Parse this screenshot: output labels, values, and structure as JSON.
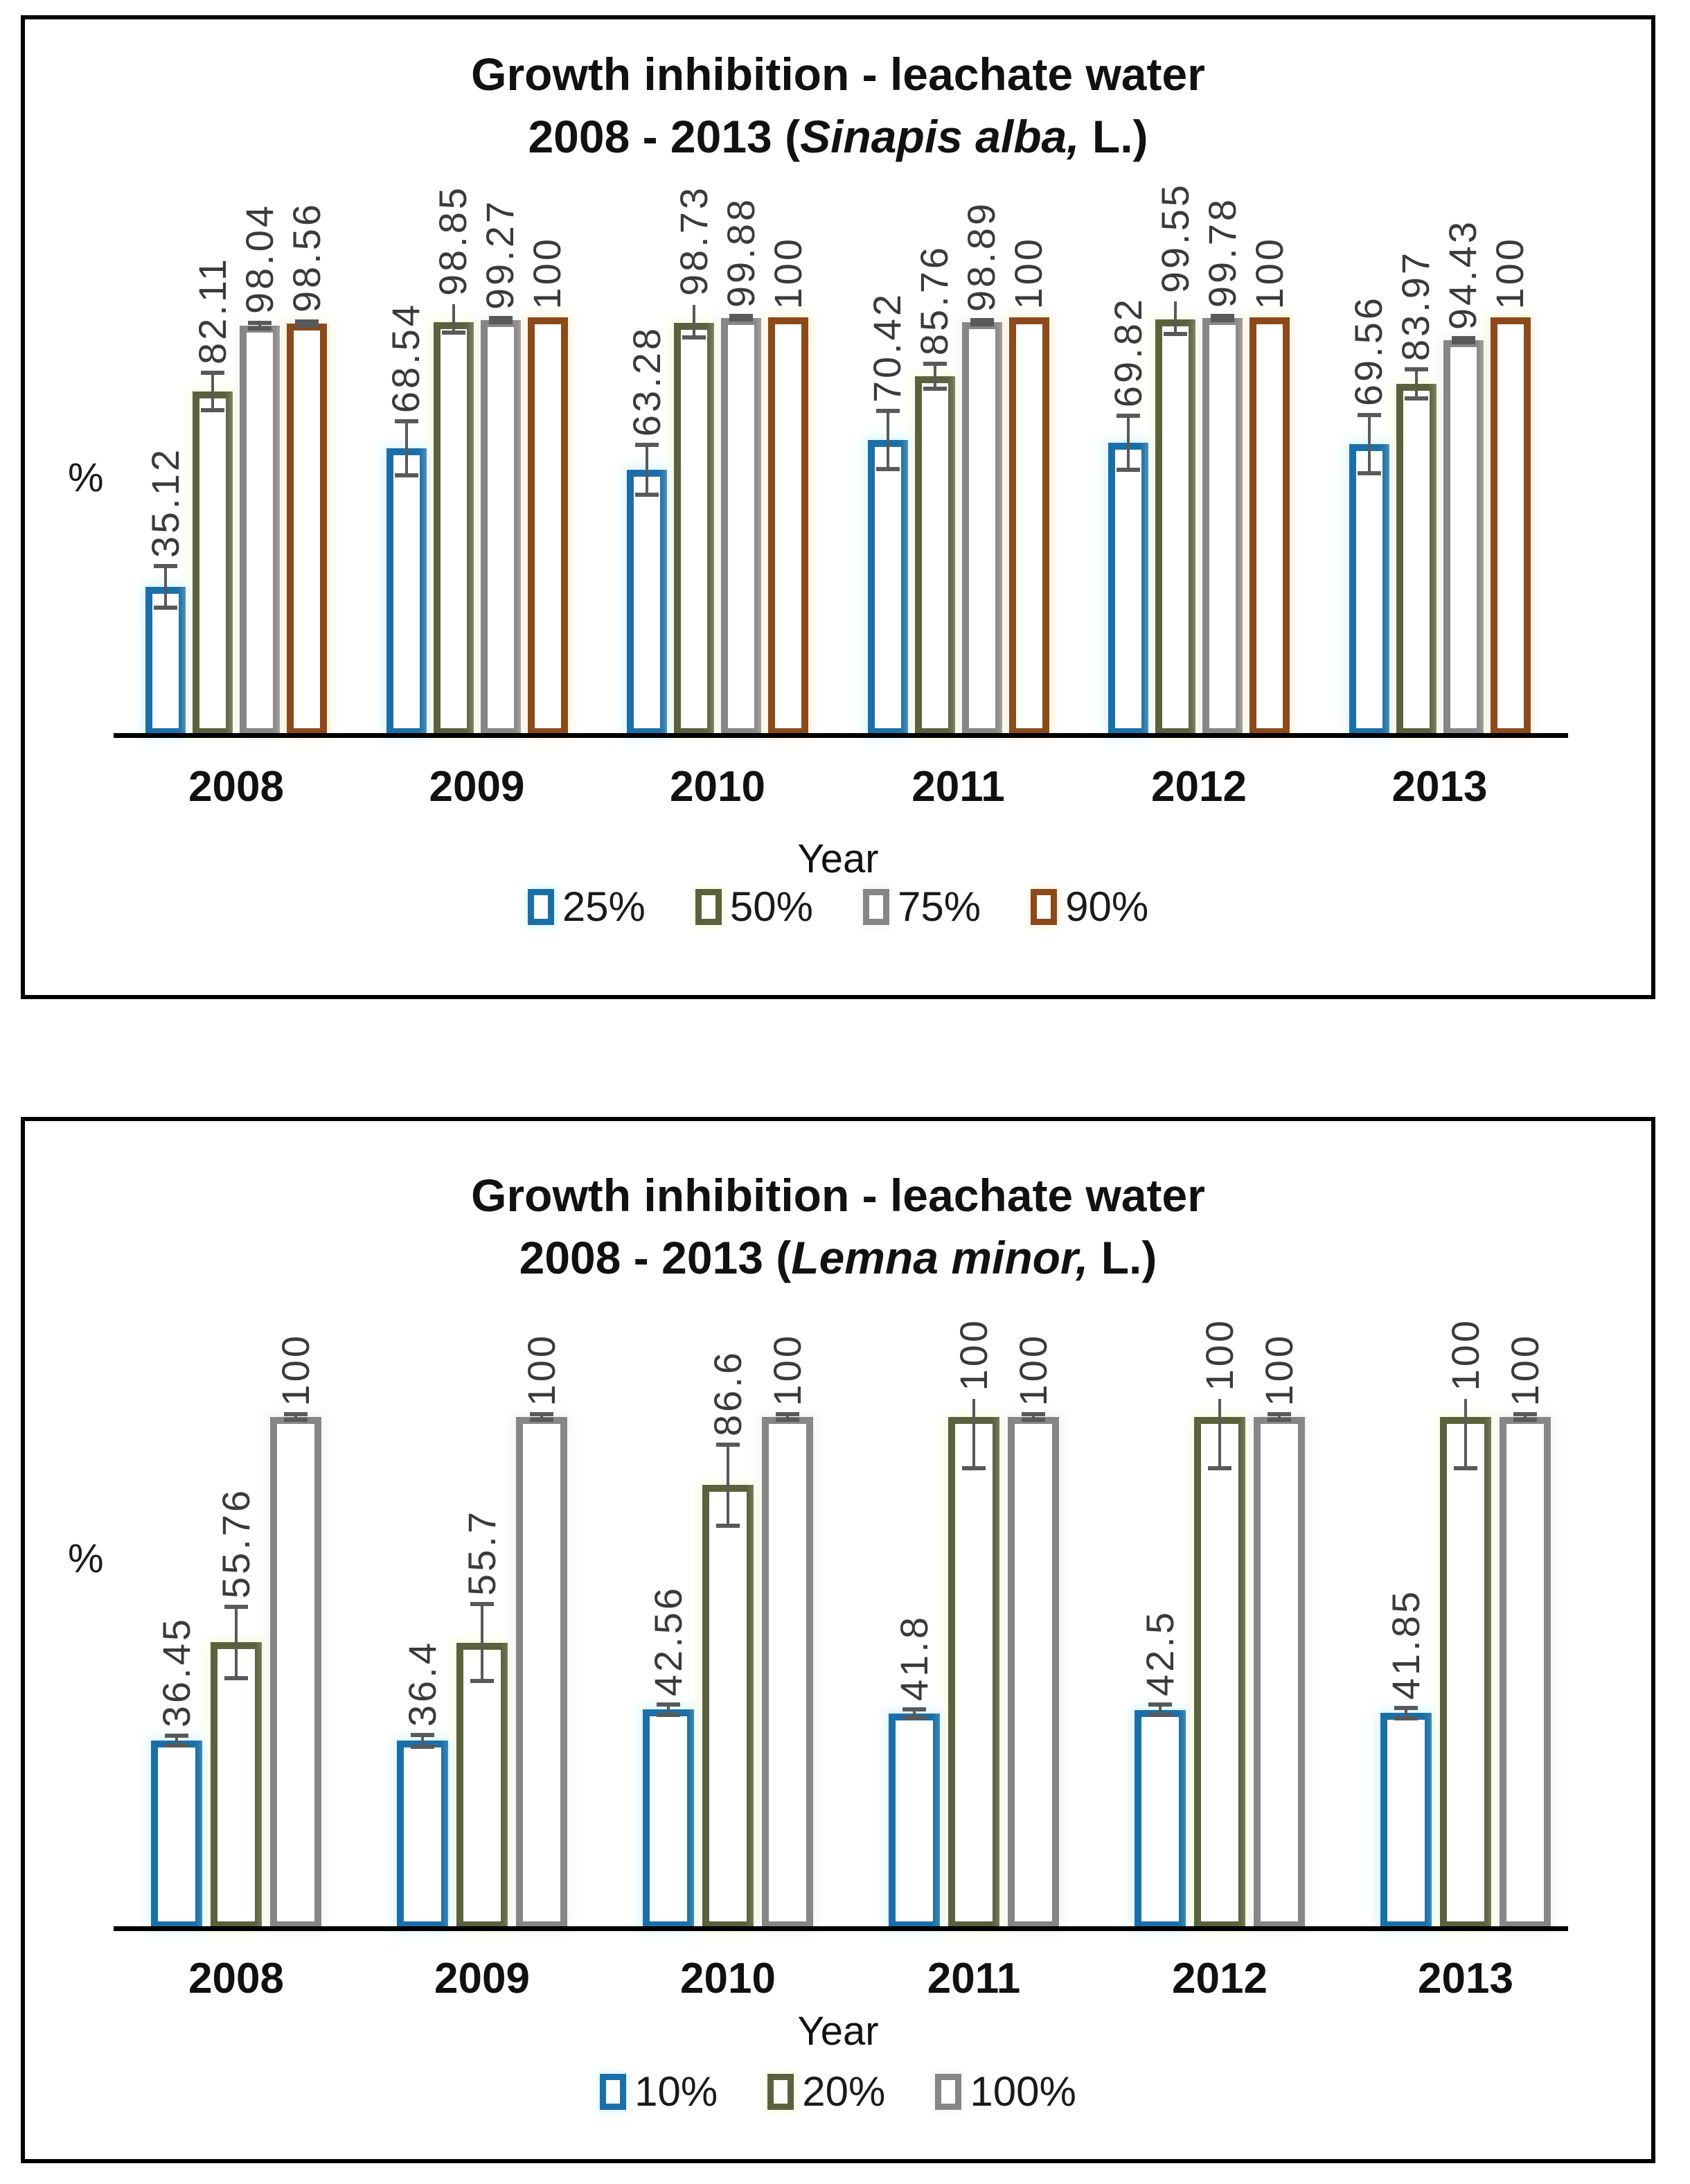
{
  "figure": {
    "background": "#ffffff",
    "error_bar_color": "#595959"
  },
  "chart_data": [
    {
      "type": "bar",
      "title": "Growth inhibition - leachate water 2008 - 2013 (Sinapis alba, L.)",
      "title_parts": {
        "line1": "Growth inhibition - leachate water",
        "line2_pre": "2008 - 2013 (",
        "line2_species": "Sinapis alba,",
        "line2_post": " L.)"
      },
      "xlabel": "Year",
      "ylabel": "%",
      "ylim": [
        0,
        100
      ],
      "grid": false,
      "legend_position": "bottom",
      "value_labels": "rotated 90 degrees, above bars",
      "error_bars": true,
      "categories": [
        "2008",
        "2009",
        "2010",
        "2011",
        "2012",
        "2013"
      ],
      "series": [
        {
          "name": "25%",
          "color": "#1b6fa9",
          "glow": "#d9f6ff",
          "values": [
            35.12,
            68.54,
            63.28,
            70.42,
            69.82,
            69.56
          ],
          "errors_est": [
            5,
            6.5,
            6,
            7,
            6.5,
            7
          ]
        },
        {
          "name": "50%",
          "color": "#59623c",
          "glow": "#fafae0",
          "values": [
            82.11,
            98.85,
            98.73,
            85.76,
            99.55,
            83.97
          ],
          "errors_est": [
            4.5,
            2.5,
            3.5,
            3,
            3.5,
            3.5
          ]
        },
        {
          "name": "75%",
          "color": "#868686",
          "glow": "#f4f4f4",
          "values": [
            98.04,
            99.27,
            99.88,
            98.89,
            99.78,
            94.43
          ],
          "errors_est": [
            0.7,
            0.5,
            0.4,
            0.5,
            0.5,
            0.5
          ]
        },
        {
          "name": "90%",
          "color": "#8c4a1a",
          "glow": "#fdf3dc",
          "values": [
            98.56,
            100,
            100,
            100,
            100,
            100
          ],
          "errors_est": [
            0.5,
            0,
            0,
            0,
            0,
            0
          ]
        }
      ]
    },
    {
      "type": "bar",
      "title": "Growth inhibition - leachate water 2008 - 2013 (Lemna minor, L.)",
      "title_parts": {
        "line1": "Growth inhibition - leachate water",
        "line2_pre": "2008 - 2013 (",
        "line2_species": "Lemna minor,",
        "line2_post": " L.)"
      },
      "xlabel": "Year",
      "ylabel": "%",
      "ylim": [
        0,
        100
      ],
      "grid": false,
      "legend_position": "bottom",
      "value_labels": "rotated 90 degrees, above bars",
      "error_bars": true,
      "categories": [
        "2008",
        "2009",
        "2010",
        "2011",
        "2012",
        "2013"
      ],
      "series": [
        {
          "name": "10%",
          "color": "#1b6fa9",
          "glow": "#d9f6ff",
          "values": [
            36.45,
            36.4,
            42.56,
            41.8,
            42.5,
            41.85
          ],
          "errors_est": [
            1,
            1.2,
            1,
            0.8,
            1,
            1
          ]
        },
        {
          "name": "20%",
          "color": "#59623c",
          "glow": "#fafae0",
          "values": [
            55.76,
            55.7,
            86.6,
            100,
            100,
            100
          ],
          "errors_est": [
            7,
            7.5,
            8,
            10,
            10,
            10
          ]
        },
        {
          "name": "100%",
          "color": "#868686",
          "glow": "#f4f4f4",
          "values": [
            100,
            100,
            100,
            100,
            100,
            100
          ],
          "errors_est": [
            0.5,
            0.5,
            0.5,
            0.5,
            0.5,
            0.5
          ]
        }
      ]
    }
  ]
}
